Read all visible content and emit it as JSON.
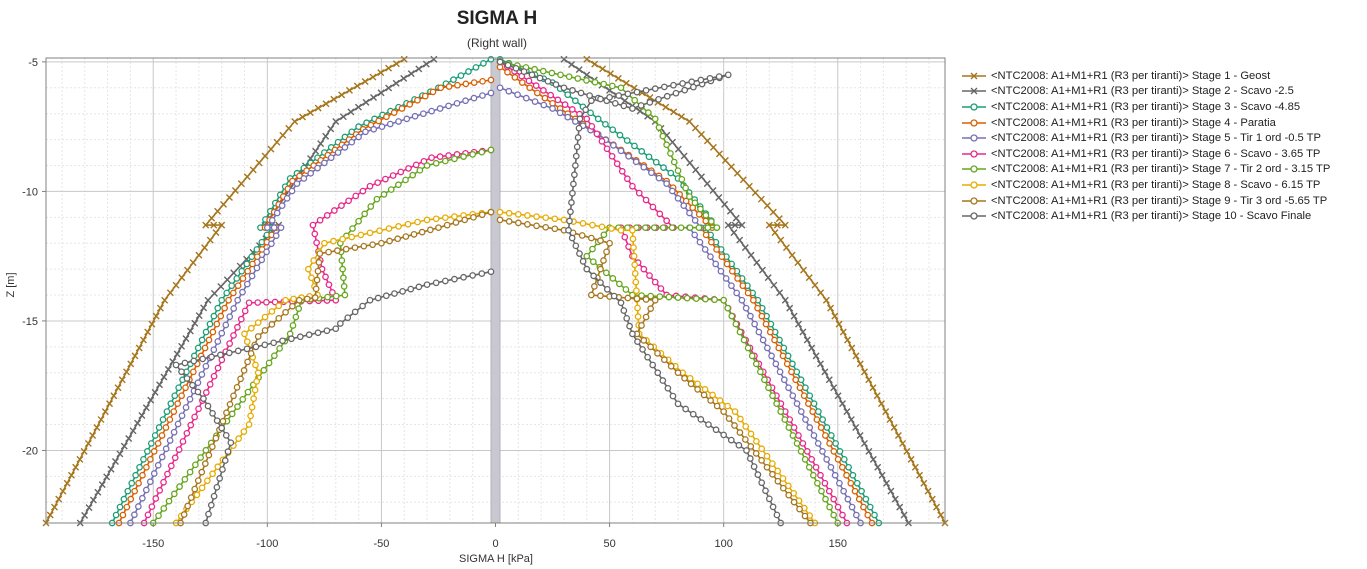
{
  "chart_data": {
    "type": "line",
    "title": "SIGMA H",
    "subtitle": "(Right wall)",
    "xlabel": "SIGMA H [kPa]",
    "ylabel": "Z [m]",
    "xlim": [
      -197,
      197
    ],
    "ylim": [
      -22.8,
      -4.85
    ],
    "xticks": [
      -150,
      -100,
      -50,
      0,
      50,
      100,
      150
    ],
    "yticks": [
      -5,
      -10,
      -15,
      -20
    ],
    "grid": true,
    "legend_position": "right",
    "wall": {
      "x": [
        -2,
        2
      ],
      "y": [
        -4.9,
        -22.8
      ],
      "color": "#c8c8d0"
    },
    "series": [
      {
        "name": "<NTC2008: A1+M1+R1 (R3 per tiranti)> Stage 1 - Geost",
        "color": "#a6761d",
        "marker": "x",
        "left": [
          [
            -40,
            -4.9
          ],
          [
            -88,
            -7.3
          ],
          [
            -127,
            -11.3
          ],
          [
            -120,
            -11.3
          ],
          [
            -145,
            -14.2
          ],
          [
            -197,
            -22.8
          ]
        ],
        "right": [
          [
            40,
            -4.9
          ],
          [
            85,
            -7.3
          ],
          [
            127,
            -11.3
          ],
          [
            120,
            -11.3
          ],
          [
            145,
            -14.2
          ],
          [
            197,
            -22.8
          ]
        ]
      },
      {
        "name": "<NTC2008: A1+M1+R1 (R3 per tiranti)> Stage 2 - Scavo -2.5",
        "color": "#666666",
        "marker": "x",
        "left": [
          [
            -27,
            -4.9
          ],
          [
            -70,
            -7.3
          ],
          [
            -101,
            -11.3
          ],
          [
            -95,
            -11.3
          ],
          [
            -126,
            -14.2
          ],
          [
            -182,
            -22.8
          ]
        ],
        "right": [
          [
            30,
            -4.9
          ],
          [
            70,
            -7.3
          ],
          [
            108,
            -11.3
          ],
          [
            102,
            -11.3
          ],
          [
            127,
            -14.2
          ],
          [
            181,
            -22.8
          ]
        ]
      },
      {
        "name": "<NTC2008: A1+M1+R1 (R3 per tiranti)> Stage 3 - Scavo -4.85",
        "color": "#1b9e77",
        "marker": "o",
        "left": [
          [
            -2,
            -4.9
          ],
          [
            -25,
            -6.0
          ],
          [
            -60,
            -7.5
          ],
          [
            -90,
            -9.5
          ],
          [
            -103,
            -11.4
          ],
          [
            -98,
            -11.4
          ],
          [
            -120,
            -14.2
          ],
          [
            -168,
            -22.8
          ]
        ],
        "right": [
          [
            2,
            -4.9
          ],
          [
            25,
            -5.8
          ],
          [
            45,
            -7.2
          ],
          [
            80,
            -9.5
          ],
          [
            97,
            -11.4
          ],
          [
            92,
            -11.4
          ],
          [
            115,
            -14.2
          ],
          [
            168,
            -22.8
          ]
        ]
      },
      {
        "name": "<NTC2008: A1+M1+R1 (R3 per tiranti)> Stage 4 - Paratia",
        "color": "#d95f02",
        "marker": "o",
        "left": [
          [
            -2,
            -5.7
          ],
          [
            -24,
            -6.0
          ],
          [
            -58,
            -7.6
          ],
          [
            -89,
            -9.6
          ],
          [
            -101,
            -11.4
          ],
          [
            -96,
            -11.4
          ],
          [
            -117,
            -14.2
          ],
          [
            -165,
            -22.8
          ]
        ],
        "right": [
          [
            2,
            -5.2
          ],
          [
            15,
            -6.0
          ],
          [
            35,
            -7.2
          ],
          [
            75,
            -9.6
          ],
          [
            95,
            -11.4
          ],
          [
            90,
            -11.4
          ],
          [
            113,
            -14.2
          ],
          [
            165,
            -22.8
          ]
        ]
      },
      {
        "name": "<NTC2008: A1+M1+R1 (R3 per tiranti)> Stage 5 - Tir 1 ord -0.5 TP",
        "color": "#7570b3",
        "marker": "o",
        "left": [
          [
            -2,
            -6.2
          ],
          [
            -28,
            -6.9
          ],
          [
            -57,
            -7.7
          ],
          [
            -87,
            -9.7
          ],
          [
            -100,
            -11.4
          ],
          [
            -94,
            -11.4
          ],
          [
            -113,
            -14.2
          ],
          [
            -160,
            -22.8
          ]
        ],
        "right": [
          [
            2,
            -6.0
          ],
          [
            25,
            -6.8
          ],
          [
            45,
            -7.8
          ],
          [
            75,
            -9.7
          ],
          [
            90,
            -11.4
          ],
          [
            85,
            -11.4
          ],
          [
            108,
            -14.2
          ],
          [
            160,
            -22.8
          ]
        ]
      },
      {
        "name": "<NTC2008: A1+M1+R1 (R3 per tiranti)> Stage 6 - Scavo - 3.65 TP",
        "color": "#e7298a",
        "marker": "o",
        "left": [
          [
            -2,
            -8.4
          ],
          [
            -28,
            -8.7
          ],
          [
            -55,
            -9.8
          ],
          [
            -80,
            -11.3
          ],
          [
            -76,
            -13.0
          ],
          [
            -70,
            -14.2
          ],
          [
            -108,
            -14.3
          ],
          [
            -154,
            -22.8
          ]
        ],
        "right": [
          [
            2,
            -5.0
          ],
          [
            40,
            -7.2
          ],
          [
            60,
            -9.8
          ],
          [
            78,
            -11.4
          ],
          [
            55,
            -11.4
          ],
          [
            60,
            -12.5
          ],
          [
            75,
            -14.0
          ],
          [
            100,
            -14.2
          ],
          [
            154,
            -22.8
          ]
        ]
      },
      {
        "name": "<NTC2008: A1+M1+R1 (R3 per tiranti)> Stage 7 - Tir 2 ord - 3.15 TP",
        "color": "#66a61e",
        "marker": "o",
        "left": [
          [
            -2,
            -8.4
          ],
          [
            -30,
            -9.0
          ],
          [
            -52,
            -10.3
          ],
          [
            -68,
            -12.0
          ],
          [
            -66,
            -14.0
          ],
          [
            -85,
            -14.2
          ],
          [
            -90,
            -15.5
          ],
          [
            -150,
            -22.8
          ]
        ],
        "right": [
          [
            2,
            -5.0
          ],
          [
            55,
            -6.0
          ],
          [
            70,
            -7.2
          ],
          [
            85,
            -10.2
          ],
          [
            97,
            -11.4
          ],
          [
            50,
            -11.4
          ],
          [
            40,
            -12.5
          ],
          [
            60,
            -14.0
          ],
          [
            100,
            -14.2
          ],
          [
            150,
            -22.8
          ]
        ]
      },
      {
        "name": "<NTC2008: A1+M1+R1 (R3 per tiranti)> Stage 8 - Scavo - 6.15 TP",
        "color": "#e6ab02",
        "marker": "o",
        "left": [
          [
            -2,
            -10.8
          ],
          [
            -30,
            -11.1
          ],
          [
            -55,
            -11.6
          ],
          [
            -75,
            -12.0
          ],
          [
            -82,
            -13.0
          ],
          [
            -78,
            -14.0
          ],
          [
            -92,
            -14.2
          ],
          [
            -110,
            -15.5
          ],
          [
            -104,
            -17.0
          ],
          [
            -108,
            -19.0
          ],
          [
            -140,
            -22.8
          ]
        ],
        "right": [
          [
            2,
            -10.8
          ],
          [
            30,
            -11.1
          ],
          [
            55,
            -11.5
          ],
          [
            60,
            -11.5
          ],
          [
            63,
            -15.5
          ],
          [
            82,
            -17.0
          ],
          [
            105,
            -18.5
          ],
          [
            140,
            -22.8
          ]
        ]
      },
      {
        "name": "<NTC2008: A1+M1+R1 (R3 per tiranti)> Stage 9 - Tir 3 ord -5.65 TP",
        "color": "#a6761d",
        "marker": "o",
        "left": [
          [
            -2,
            -10.8
          ],
          [
            -25,
            -11.4
          ],
          [
            -50,
            -12.0
          ],
          [
            -77,
            -12.4
          ],
          [
            -79,
            -14.1
          ],
          [
            -86,
            -14.2
          ],
          [
            -104,
            -15.6
          ],
          [
            -138,
            -22.8
          ]
        ],
        "right": [
          [
            2,
            -11.1
          ],
          [
            30,
            -11.5
          ],
          [
            50,
            -12.0
          ],
          [
            42,
            -14.0
          ],
          [
            70,
            -14.2
          ],
          [
            62,
            -15.5
          ],
          [
            80,
            -17.0
          ],
          [
            100,
            -18.5
          ],
          [
            138,
            -22.8
          ]
        ]
      },
      {
        "name": "<NTC2008: A1+M1+R1 (R3 per tiranti)> Stage 10 - Scavo Finale",
        "color": "#666666",
        "marker": "o",
        "left": [
          [
            -2,
            -13.1
          ],
          [
            -30,
            -13.6
          ],
          [
            -55,
            -14.2
          ],
          [
            -68,
            -15.1
          ],
          [
            -70,
            -15.3
          ],
          [
            -140,
            -16.7
          ],
          [
            -128,
            -18.0
          ],
          [
            -116,
            -19.7
          ],
          [
            -127,
            -22.8
          ]
        ],
        "right": [
          [
            2,
            -5.0
          ],
          [
            30,
            -6.0
          ],
          [
            60,
            -6.8
          ],
          [
            102,
            -5.5
          ],
          [
            42,
            -6.5
          ],
          [
            37,
            -7.2
          ],
          [
            35,
            -9.0
          ],
          [
            32,
            -11.5
          ],
          [
            40,
            -13.0
          ],
          [
            55,
            -14.3
          ],
          [
            60,
            -15.5
          ],
          [
            80,
            -18.2
          ],
          [
            110,
            -20.0
          ],
          [
            125,
            -22.8
          ]
        ]
      }
    ]
  }
}
